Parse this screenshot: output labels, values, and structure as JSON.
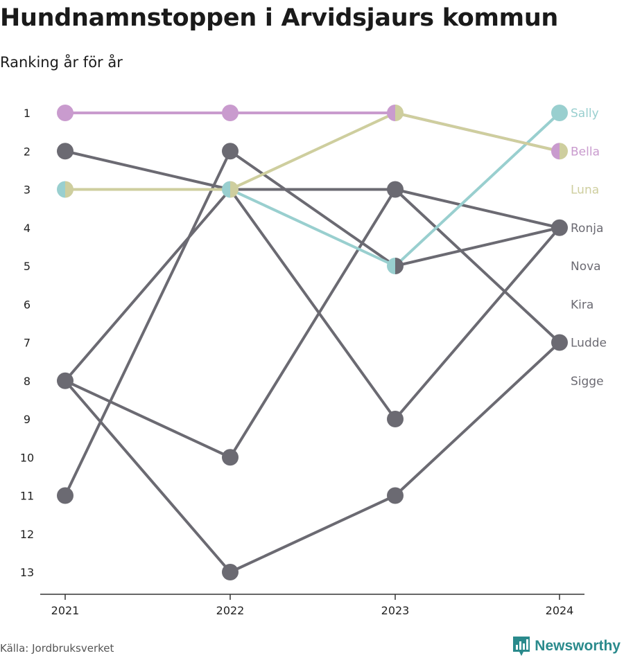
{
  "title": "Hundnamnstoppen i Arvidsjaurs kommun",
  "subtitle": "Ranking år för år",
  "source": "Källa: Jordbruksverket",
  "brand": "Newsworthy",
  "colors": {
    "Sally": "#99cfcf",
    "Bella": "#c99bce",
    "Luna": "#cece9e",
    "other": "#6b6a72",
    "axis": "#333333",
    "brand": "#2a8a8c"
  },
  "chart_data": {
    "type": "line",
    "subtype": "bump",
    "x": [
      "2021",
      "2022",
      "2023",
      "2024"
    ],
    "y_ticks": [
      1,
      2,
      3,
      4,
      5,
      6,
      7,
      8,
      9,
      10,
      11,
      12,
      13
    ],
    "y_reversed": true,
    "series": [
      {
        "name": "Sally",
        "color": "#99cfcf",
        "values": [
          3,
          3,
          5,
          1
        ]
      },
      {
        "name": "Bella",
        "color": "#c99bce",
        "values": [
          1,
          1,
          1,
          2
        ]
      },
      {
        "name": "Luna",
        "color": "#cece9e",
        "values": [
          3,
          3,
          1,
          2
        ]
      },
      {
        "name": "Ronja",
        "color": "#6b6a72",
        "values": [
          2,
          3,
          3,
          4
        ]
      },
      {
        "name": "Nova",
        "color": "#6b6a72",
        "values": [
          8,
          3,
          9,
          4
        ]
      },
      {
        "name": "Kira",
        "color": "#6b6a72",
        "values": [
          11,
          2,
          5,
          4
        ]
      },
      {
        "name": "Ludde",
        "color": "#6b6a72",
        "values": [
          8,
          10,
          3,
          7
        ]
      },
      {
        "name": "Sigge",
        "color": "#6b6a72",
        "values": [
          8,
          13,
          11,
          7
        ]
      }
    ],
    "end_labels": [
      {
        "name": "Sally",
        "rank": 1,
        "color": "#99cfcf"
      },
      {
        "name": "Bella",
        "rank": 2,
        "color": "#c99bce"
      },
      {
        "name": "Luna",
        "rank": 3,
        "color": "#cece9e"
      },
      {
        "name": "Ronja",
        "rank": 4,
        "color": "#6b6a72"
      },
      {
        "name": "Nova",
        "rank": 5,
        "color": "#6b6a72"
      },
      {
        "name": "Kira",
        "rank": 6,
        "color": "#6b6a72"
      },
      {
        "name": "Ludde",
        "rank": 7,
        "color": "#6b6a72"
      },
      {
        "name": "Sigge",
        "rank": 8,
        "color": "#6b6a72"
      }
    ]
  }
}
